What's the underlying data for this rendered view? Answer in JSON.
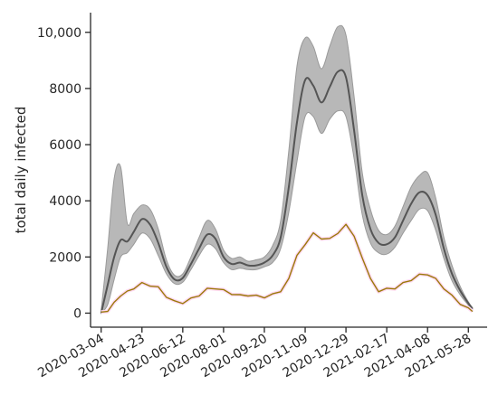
{
  "chart_data": {
    "type": "line",
    "title": "",
    "xlabel": "",
    "ylabel": "total daily infected",
    "ylim": [
      -500,
      10700
    ],
    "yticks": [
      0,
      2000,
      4000,
      6000,
      8000,
      10000
    ],
    "ytick_labels": [
      "0",
      "2000",
      "4000",
      "6000",
      "8000",
      "10,000"
    ],
    "xticks": [
      "2020-03-04",
      "2020-04-23",
      "2020-06-12",
      "2020-08-01",
      "2020-09-20",
      "2020-11-09",
      "2020-12-29",
      "2021-02-17",
      "2021-04-08",
      "2021-05-28"
    ],
    "xlim": [
      "2020-02-20",
      "2021-06-20"
    ],
    "grid": false,
    "legend": "none",
    "colors": {
      "mean_line": "#555555",
      "band_fill": "#b8b8b8",
      "band_edge": "#9a9a9a",
      "observed_line": "#9a7a0a",
      "observed_glow": "#ffd9f0"
    },
    "series": [
      {
        "role": "model-mean",
        "x": [
          "2020-03-04",
          "2020-03-12",
          "2020-03-20",
          "2020-03-28",
          "2020-04-05",
          "2020-04-13",
          "2020-04-23",
          "2020-05-03",
          "2020-05-13",
          "2020-05-23",
          "2020-06-02",
          "2020-06-12",
          "2020-06-22",
          "2020-07-02",
          "2020-07-12",
          "2020-07-22",
          "2020-08-01",
          "2020-08-11",
          "2020-08-21",
          "2020-08-31",
          "2020-09-10",
          "2020-09-20",
          "2020-09-30",
          "2020-10-10",
          "2020-10-20",
          "2020-10-30",
          "2020-11-09",
          "2020-11-19",
          "2020-11-29",
          "2020-12-09",
          "2020-12-19",
          "2020-12-29",
          "2021-01-08",
          "2021-01-18",
          "2021-01-28",
          "2021-02-07",
          "2021-02-17",
          "2021-02-27",
          "2021-03-09",
          "2021-03-19",
          "2021-03-29",
          "2021-04-08",
          "2021-04-18",
          "2021-04-28",
          "2021-05-08",
          "2021-05-18",
          "2021-05-28",
          "2021-06-02"
        ],
        "y": [
          0,
          1000,
          2000,
          2600,
          2550,
          2900,
          3350,
          3150,
          2500,
          1650,
          1200,
          1250,
          1750,
          2300,
          2800,
          2650,
          2000,
          1750,
          1800,
          1700,
          1700,
          1800,
          2050,
          2700,
          4500,
          6800,
          8300,
          8100,
          7500,
          8050,
          8600,
          8400,
          6500,
          4200,
          3000,
          2500,
          2450,
          2700,
          3300,
          3900,
          4300,
          4200,
          3500,
          2300,
          1400,
          800,
          350,
          150
        ]
      },
      {
        "role": "model-upper",
        "x": [
          "2020-03-04",
          "2020-03-12",
          "2020-03-20",
          "2020-03-28",
          "2020-04-05",
          "2020-04-13",
          "2020-04-23",
          "2020-05-03",
          "2020-05-13",
          "2020-05-23",
          "2020-06-02",
          "2020-06-12",
          "2020-06-22",
          "2020-07-02",
          "2020-07-12",
          "2020-07-22",
          "2020-08-01",
          "2020-08-11",
          "2020-08-21",
          "2020-08-31",
          "2020-09-10",
          "2020-09-20",
          "2020-09-30",
          "2020-10-10",
          "2020-10-20",
          "2020-10-30",
          "2020-11-09",
          "2020-11-19",
          "2020-11-29",
          "2020-12-09",
          "2020-12-19",
          "2020-12-29",
          "2021-01-08",
          "2021-01-18",
          "2021-01-28",
          "2021-02-07",
          "2021-02-17",
          "2021-02-27",
          "2021-03-09",
          "2021-03-19",
          "2021-03-29",
          "2021-04-08",
          "2021-04-18",
          "2021-04-28",
          "2021-05-08",
          "2021-05-18",
          "2021-05-28",
          "2021-06-02"
        ],
        "y": [
          100,
          2300,
          4800,
          5200,
          3200,
          3550,
          3850,
          3700,
          3000,
          1900,
          1350,
          1400,
          2000,
          2700,
          3300,
          3000,
          2250,
          1950,
          2000,
          1850,
          1900,
          2000,
          2400,
          3300,
          5800,
          8800,
          9800,
          9500,
          8700,
          9500,
          10200,
          9900,
          7700,
          5000,
          3700,
          2950,
          2800,
          3100,
          3800,
          4500,
          4900,
          5000,
          4100,
          2700,
          1700,
          950,
          400,
          200
        ]
      },
      {
        "role": "model-lower",
        "x": [
          "2020-03-04",
          "2020-03-12",
          "2020-03-20",
          "2020-03-28",
          "2020-04-05",
          "2020-04-13",
          "2020-04-23",
          "2020-05-03",
          "2020-05-13",
          "2020-05-23",
          "2020-06-02",
          "2020-06-12",
          "2020-06-22",
          "2020-07-02",
          "2020-07-12",
          "2020-07-22",
          "2020-08-01",
          "2020-08-11",
          "2020-08-21",
          "2020-08-31",
          "2020-09-10",
          "2020-09-20",
          "2020-09-30",
          "2020-10-10",
          "2020-10-20",
          "2020-10-30",
          "2020-11-09",
          "2020-11-19",
          "2020-11-29",
          "2020-12-09",
          "2020-12-19",
          "2020-12-29",
          "2021-01-08",
          "2021-01-18",
          "2021-01-28",
          "2021-02-07",
          "2021-02-17",
          "2021-02-27",
          "2021-03-09",
          "2021-03-19",
          "2021-03-29",
          "2021-04-08",
          "2021-04-18",
          "2021-04-28",
          "2021-05-08",
          "2021-05-18",
          "2021-05-28",
          "2021-06-02"
        ],
        "y": [
          0,
          300,
          1200,
          2000,
          2150,
          2450,
          2850,
          2650,
          2050,
          1400,
          1050,
          1100,
          1550,
          2050,
          2450,
          2300,
          1800,
          1550,
          1600,
          1550,
          1550,
          1650,
          1800,
          2300,
          3600,
          5400,
          7000,
          7000,
          6400,
          6900,
          7200,
          7000,
          5500,
          3500,
          2500,
          2150,
          2100,
          2350,
          2850,
          3300,
          3700,
          3650,
          2950,
          1950,
          1150,
          650,
          280,
          100
        ]
      },
      {
        "role": "observed",
        "x": [
          "2020-03-04",
          "2020-03-12",
          "2020-03-20",
          "2020-03-28",
          "2020-04-05",
          "2020-04-13",
          "2020-04-23",
          "2020-05-03",
          "2020-05-13",
          "2020-05-23",
          "2020-06-02",
          "2020-06-12",
          "2020-06-22",
          "2020-07-02",
          "2020-07-12",
          "2020-07-22",
          "2020-08-01",
          "2020-08-11",
          "2020-08-21",
          "2020-08-31",
          "2020-09-10",
          "2020-09-20",
          "2020-09-30",
          "2020-10-10",
          "2020-10-20",
          "2020-10-30",
          "2020-11-09",
          "2020-11-19",
          "2020-11-29",
          "2020-12-09",
          "2020-12-19",
          "2020-12-29",
          "2021-01-08",
          "2021-01-18",
          "2021-01-28",
          "2021-02-07",
          "2021-02-17",
          "2021-02-27",
          "2021-03-09",
          "2021-03-19",
          "2021-03-29",
          "2021-04-08",
          "2021-04-18",
          "2021-04-28",
          "2021-05-08",
          "2021-05-18",
          "2021-05-28",
          "2021-06-02"
        ],
        "y": [
          0,
          100,
          350,
          650,
          750,
          900,
          1050,
          1000,
          900,
          600,
          400,
          380,
          500,
          650,
          850,
          900,
          800,
          700,
          620,
          650,
          600,
          580,
          650,
          800,
          1200,
          2100,
          2400,
          2900,
          2600,
          2700,
          2800,
          3200,
          2700,
          2000,
          1200,
          800,
          850,
          900,
          1050,
          1200,
          1350,
          1400,
          1200,
          900,
          600,
          350,
          150,
          100
        ]
      }
    ]
  }
}
